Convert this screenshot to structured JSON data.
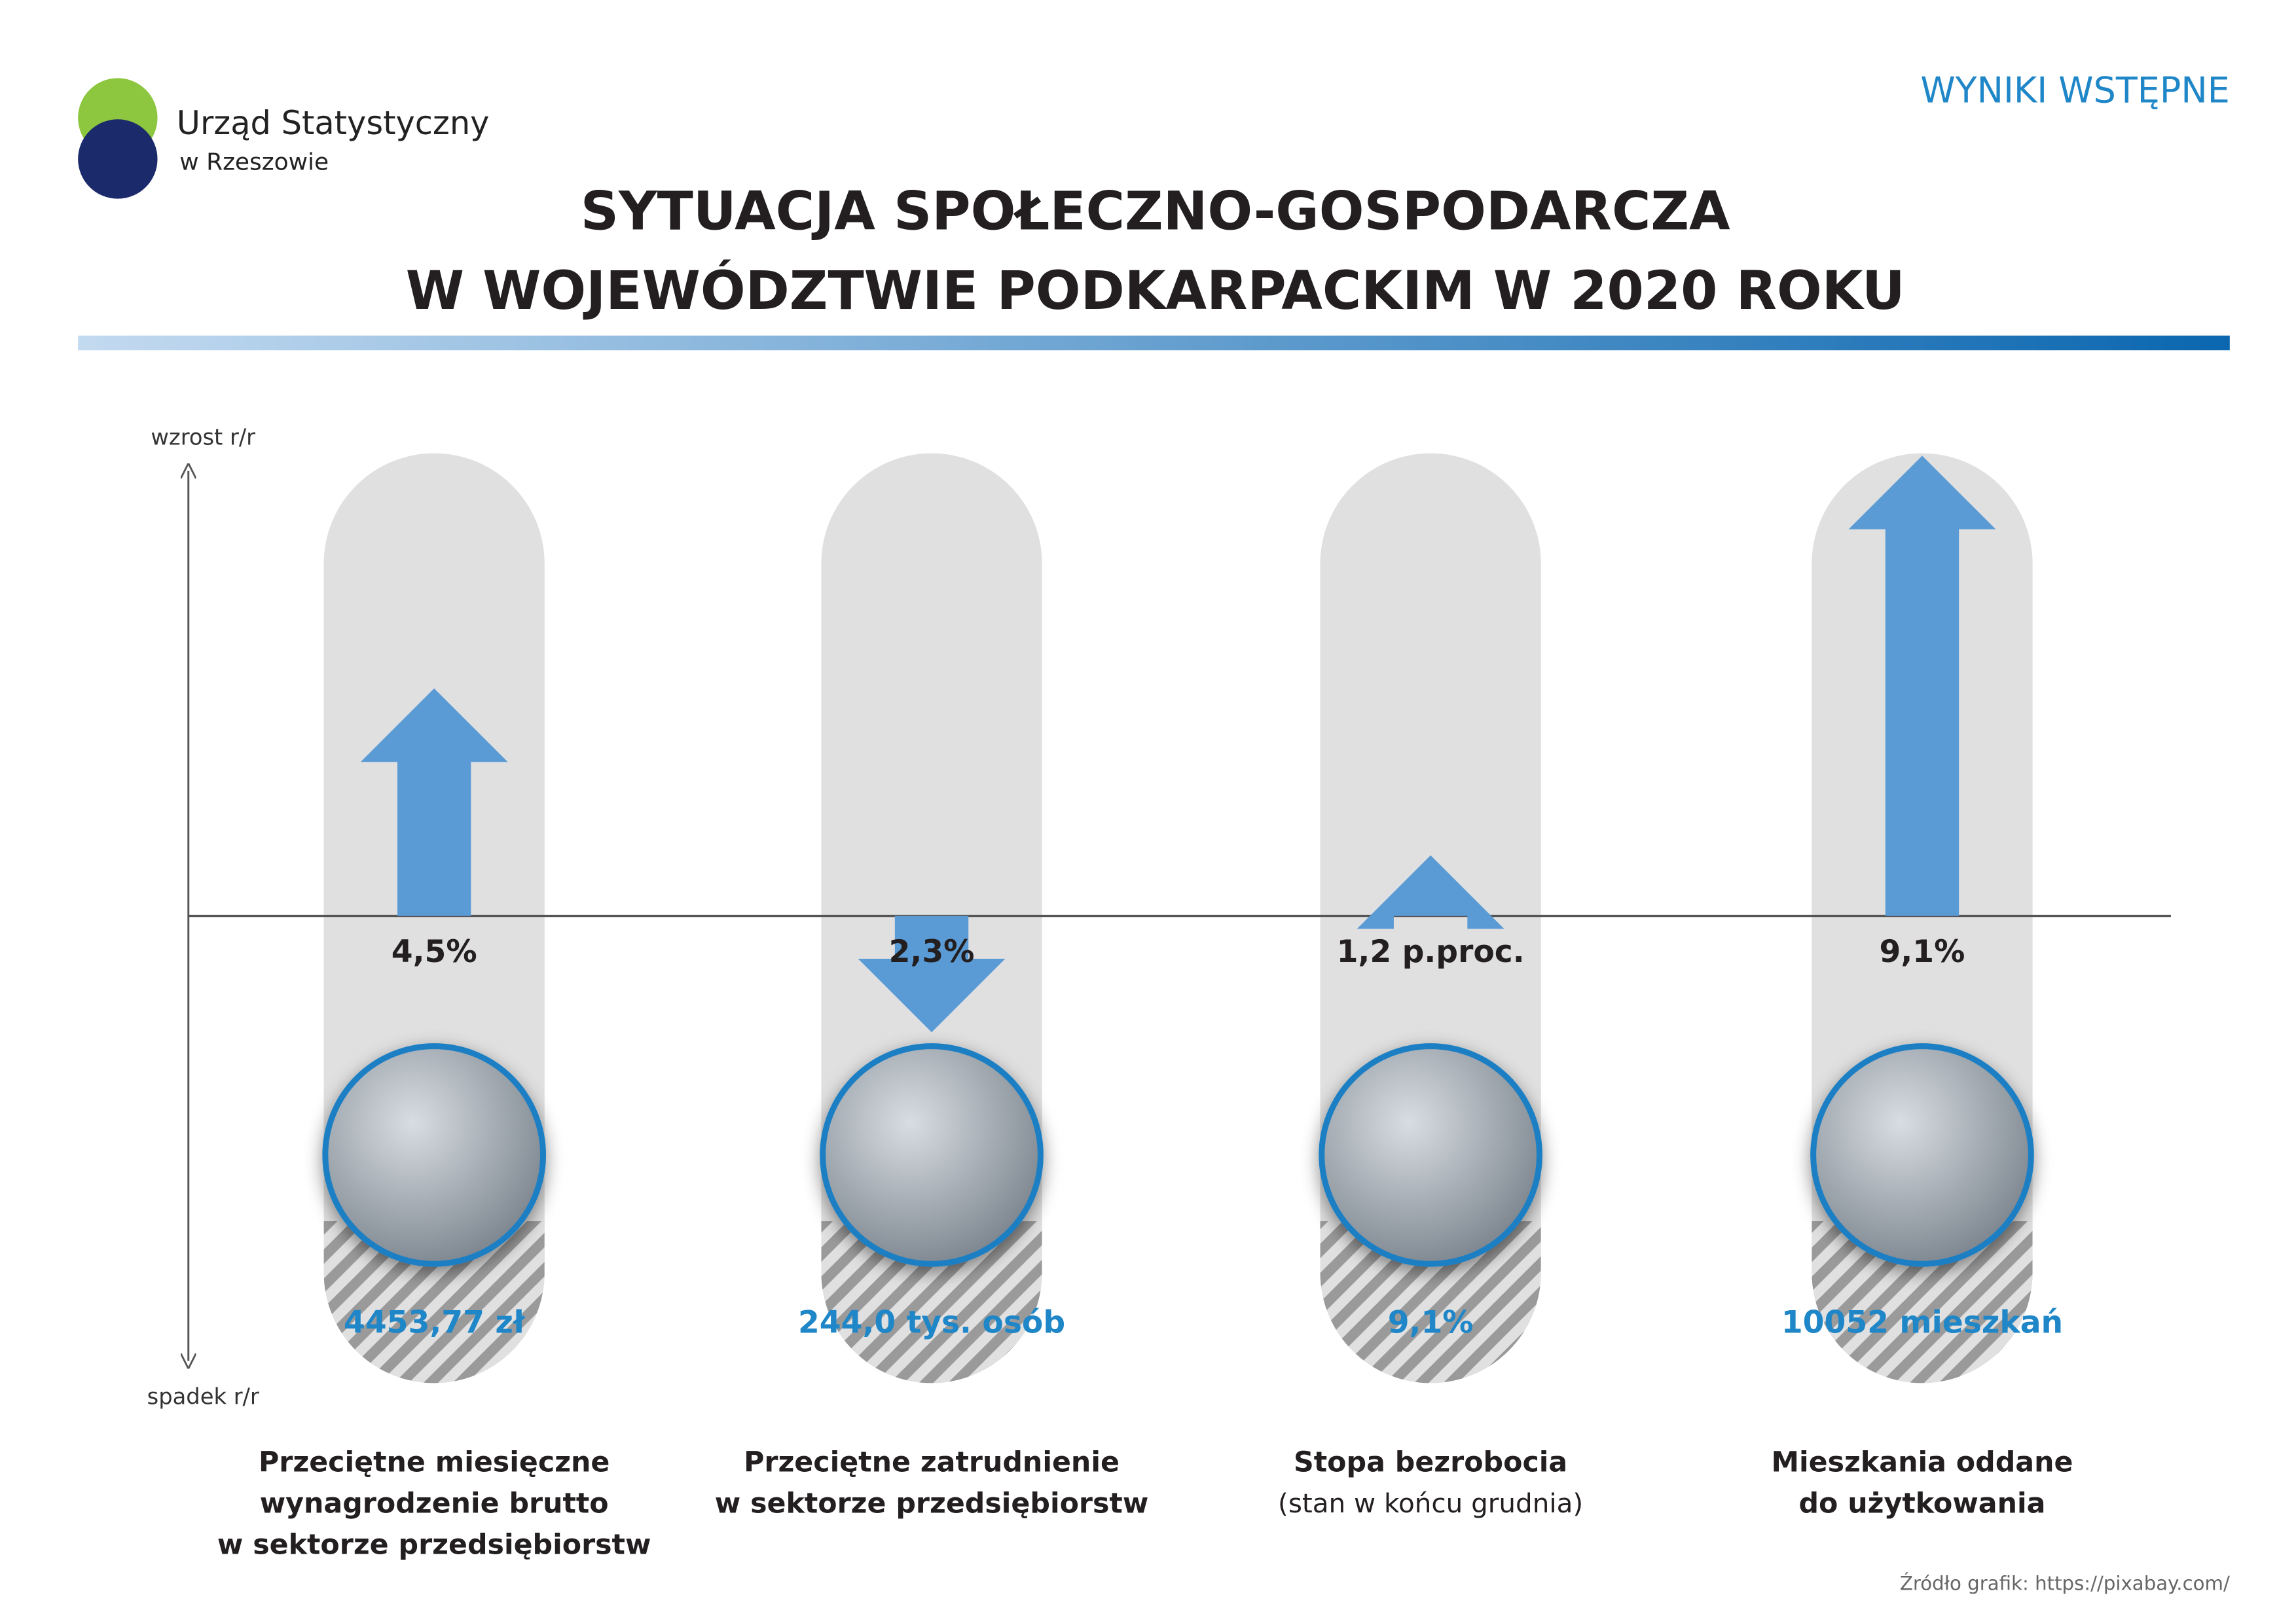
{
  "chart_data": {
    "type": "arrow",
    "agency": "Urząd Statystyczny",
    "agency_sub": "w Rzeszowie",
    "badge": "WYNIKI WSTĘPNE",
    "title": [
      "SYTUACJA SPOŁECZNO-GOSPODARCZA",
      "W WOJEWÓDZTWIE PODKARPACKIM W 2020 ROKU"
    ],
    "axis_top_label": "wzrost r/r",
    "axis_bottom_label": "spadek r/r",
    "categories": [
      [
        "Przeciętne miesięczne",
        "wynagrodzenie brutto",
        "w sektorze przedsiębiorstw"
      ],
      [
        "Przeciętne zatrudnienie",
        "w sektorze przedsiębiorstw"
      ],
      [
        "Stopa bezrobocia"
      ],
      [
        "Mieszkania oddane",
        "do użytkowania"
      ]
    ],
    "category_notes": {
      "2": "(stan w końcu grudnia)"
    },
    "values": [
      4.5,
      -2.3,
      1.2,
      9.1
    ],
    "value_labels": [
      "4,5%",
      "2,3%",
      "1,2 p.proc.",
      "9,1%"
    ],
    "levels": [
      "4453,77 zł",
      "244,0 tys. osób",
      "9,1%",
      "10052 mieszkań"
    ],
    "ylim": [
      -8.8,
      8.8
    ],
    "color": "#5b9bd5",
    "source": "Źródło grafik: https://pixabay.com/"
  }
}
